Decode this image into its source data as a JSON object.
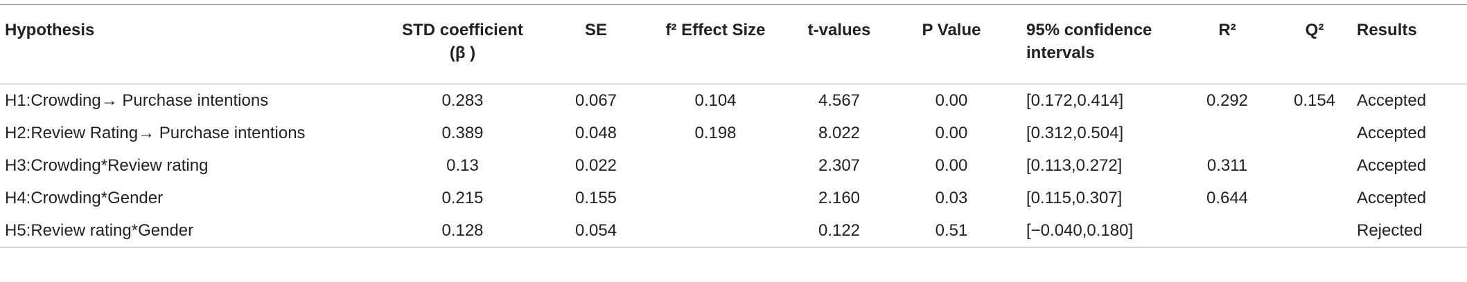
{
  "table": {
    "columns": [
      "Hypothesis",
      "STD coefficient (β )",
      "SE",
      "f² Effect Size",
      "t-values",
      "P Value",
      "95% confidence intervals",
      "R²",
      "Q²",
      "Results"
    ],
    "rows": [
      [
        "H1:Crowding→ Purchase intentions",
        "0.283",
        "0.067",
        "0.104",
        "4.567",
        "0.00",
        "[0.172,0.414]",
        "0.292",
        "0.154",
        "Accepted"
      ],
      [
        "H2:Review Rating→ Purchase intentions",
        "0.389",
        "0.048",
        "0.198",
        "8.022",
        "0.00",
        "[0.312,0.504]",
        null,
        null,
        "Accepted"
      ],
      [
        "H3:Crowding*Review rating",
        "0.13",
        "0.022",
        null,
        "2.307",
        "0.00",
        "[0.113,0.272]",
        "0.311",
        null,
        "Accepted"
      ],
      [
        "H4:Crowding*Gender",
        "0.215",
        "0.155",
        null,
        "2.160",
        "0.03",
        "[0.115,0.307]",
        "0.644",
        null,
        "Accepted"
      ],
      [
        "H5:Review rating*Gender",
        "0.128",
        "0.054",
        null,
        "0.122",
        "0.51",
        "[−0.040,0.180]",
        null,
        null,
        "Rejected"
      ]
    ]
  }
}
